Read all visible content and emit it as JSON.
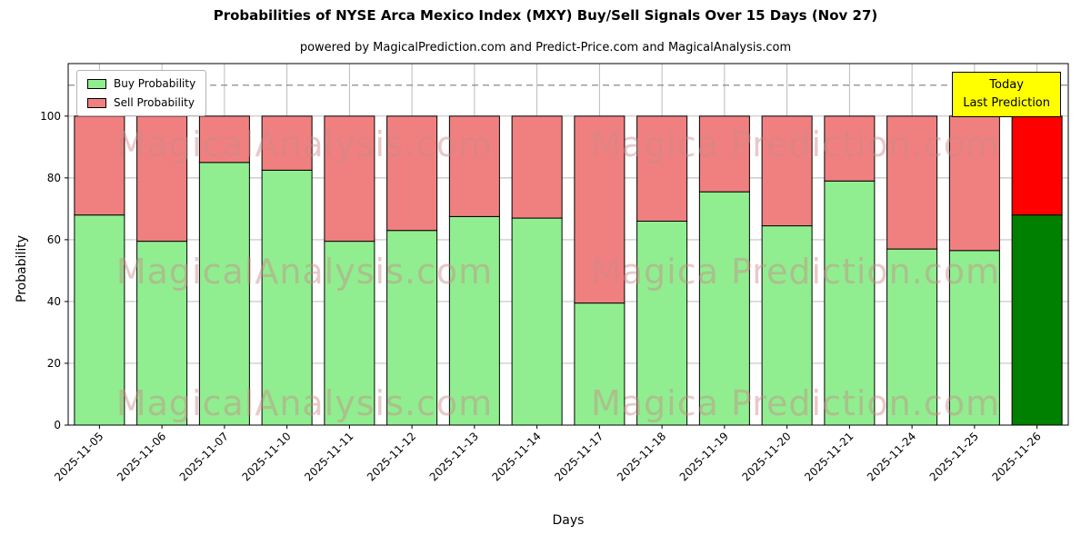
{
  "chart_data": {
    "type": "bar",
    "stacked": true,
    "title": "Probabilities of NYSE Arca Mexico Index (MXY) Buy/Sell Signals Over 15 Days (Nov 27)",
    "subtitle": "powered by MagicalPrediction.com and Predict-Price.com and MagicalAnalysis.com",
    "xlabel": "Days",
    "ylabel": "Probability",
    "categories": [
      "2025-11-05",
      "2025-11-06",
      "2025-11-07",
      "2025-11-10",
      "2025-11-11",
      "2025-11-12",
      "2025-11-13",
      "2025-11-14",
      "2025-11-17",
      "2025-11-18",
      "2025-11-19",
      "2025-11-20",
      "2025-11-21",
      "2025-11-24",
      "2025-11-25",
      "2025-11-26"
    ],
    "series": [
      {
        "name": "Buy Probability",
        "color": "#90EE90",
        "values": [
          68,
          59.5,
          85,
          82.5,
          59.5,
          63,
          67.5,
          67,
          39.5,
          66,
          75.5,
          64.5,
          79,
          57,
          56.5,
          68
        ]
      },
      {
        "name": "Sell Probability",
        "color": "#F08080",
        "values": [
          32,
          40.5,
          15,
          17.5,
          40.5,
          37,
          32.5,
          33,
          60.5,
          34,
          24.5,
          35.5,
          21,
          43,
          43.5,
          32
        ]
      }
    ],
    "last_bar_colors": {
      "buy": "#008000",
      "sell": "#FF0000"
    },
    "yticks": [
      0,
      20,
      40,
      60,
      80,
      100
    ],
    "ylim": [
      0,
      117
    ],
    "dashed_line_y": 110,
    "grid": true,
    "legend_position": "upper-left",
    "bar_edge_color": "#000000",
    "grid_color": "#b3b3b3"
  },
  "annotation": {
    "line1": "Today",
    "line2": "Last Prediction",
    "bg": "#FFFF00"
  },
  "watermarks": {
    "color": "#cc8888",
    "opacity": 0.45,
    "rows": [
      172,
      312,
      457
    ],
    "items": [
      {
        "x": 335,
        "text": "MagicalAnalysis.com"
      },
      {
        "x": 875,
        "text": "Magica Prediction.com"
      }
    ]
  }
}
